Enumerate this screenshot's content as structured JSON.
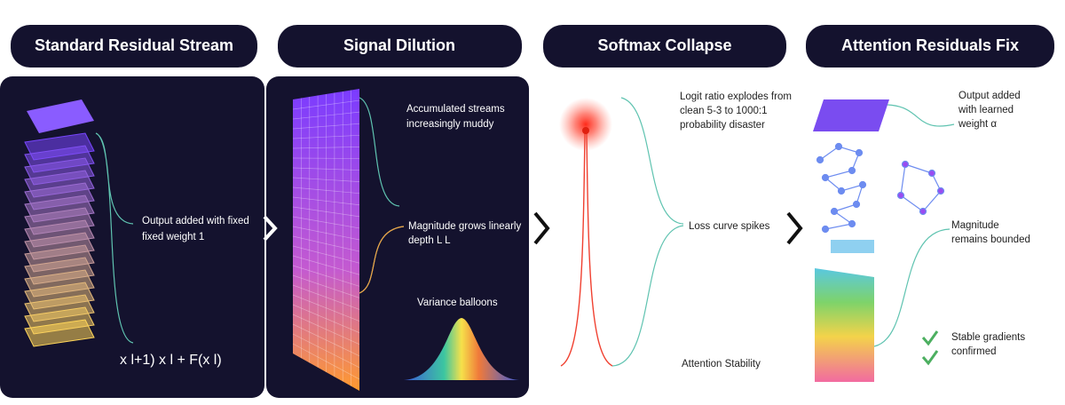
{
  "panels": [
    {
      "title": "Standard Residual Stream",
      "annotations": [
        {
          "lines": [
            "Output added with fixed",
            "fixed weight 1"
          ]
        }
      ],
      "formula": "x l+1)  x l + F(x l)"
    },
    {
      "title": "Signal Dilution",
      "annotations": [
        {
          "lines": [
            "Accumulated streams",
            "increasingly muddy"
          ]
        },
        {
          "lines": [
            "Magnitude grows linearly",
            "depth L L"
          ]
        },
        {
          "lines": [
            "Variance balloons"
          ]
        }
      ]
    },
    {
      "title": "Softmax Collapse",
      "annotations": [
        {
          "lines": [
            "Logit ratio explodes from",
            "clean 5-3 to 1000:1",
            "probability disaster"
          ]
        },
        {
          "lines": [
            "Loss curve spikes"
          ]
        },
        {
          "lines": [
            "Attention Stability"
          ]
        }
      ]
    },
    {
      "title": "Attention Residuals Fix",
      "annotations": [
        {
          "lines": [
            "Output added",
            "with learned",
            "weight α"
          ]
        },
        {
          "lines": [
            "Magnitude",
            "remains bounded"
          ]
        },
        {
          "lines": [
            "Stable gradients",
            "confirmed"
          ]
        }
      ]
    }
  ]
}
